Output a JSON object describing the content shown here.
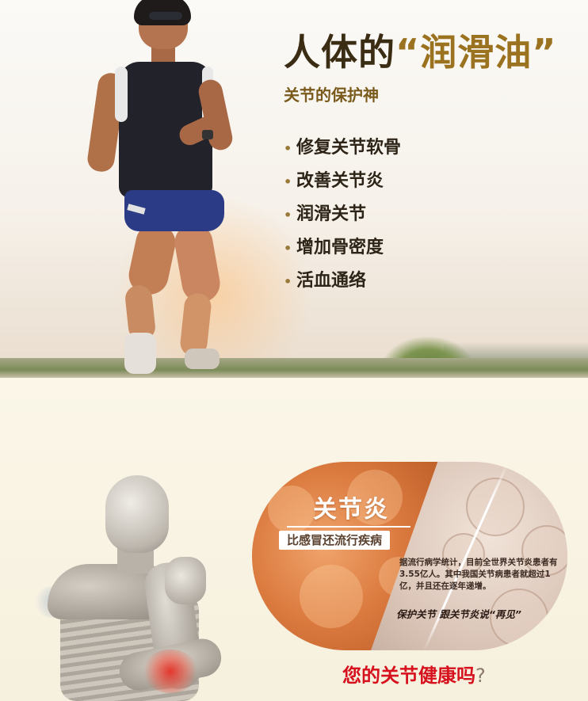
{
  "hero": {
    "title_main": "人体的",
    "title_quoted": "“润滑油”",
    "subtitle": "关节的保护神",
    "bullet_glyph": "•",
    "features": [
      {
        "label": "修复关节软骨"
      },
      {
        "label": "改善关节炎"
      },
      {
        "label": "润滑关节"
      },
      {
        "label": "增加骨密度"
      },
      {
        "label": "活血通络"
      }
    ]
  },
  "disease_panel": {
    "title": "关节炎",
    "tagline": "比感冒还流行疾病",
    "stats": "据流行病学统计，目前全世界关节炎患者有3.55亿人。其中我国关节病患者就超过1亿，并且还在逐年递增。",
    "slogan": "保护关节 跟关节炎说“再见”"
  },
  "cta": {
    "text": "您的关节健康吗",
    "question_mark": "?"
  },
  "colors": {
    "title_dark": "#3b2d14",
    "title_gold": "#9a7220",
    "orb_orange": "#db7a3f",
    "cta_red": "#d6101c"
  }
}
